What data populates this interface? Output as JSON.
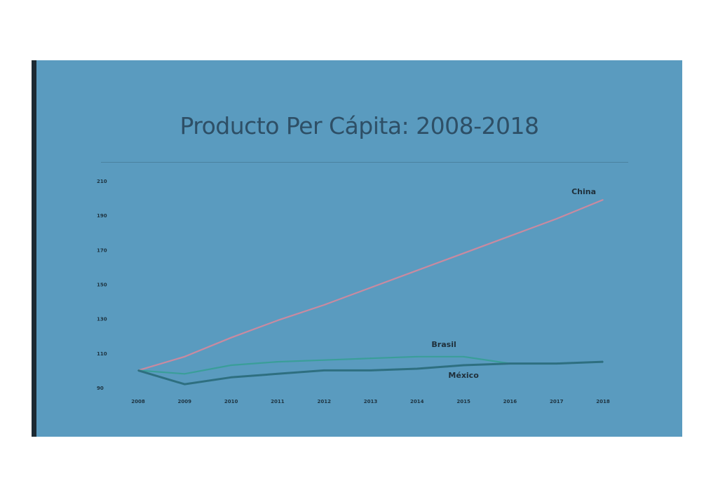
{
  "chart_data": {
    "type": "line",
    "title": "Producto Per Cápita: 2008-2018",
    "x": [
      "2008",
      "2009",
      "2010",
      "2011",
      "2012",
      "2013",
      "2014",
      "2015",
      "2016",
      "2017",
      "2018"
    ],
    "y_ticks": [
      "90",
      "110",
      "130",
      "150",
      "170",
      "190",
      "210"
    ],
    "ylim": [
      90,
      210
    ],
    "series": [
      {
        "name": "China",
        "color": "#c98aa0",
        "values": [
          100,
          108,
          119,
          129,
          138,
          148,
          158,
          168,
          178,
          188,
          199
        ]
      },
      {
        "name": "Brasil",
        "color": "#3a9e99",
        "values": [
          100,
          98,
          103,
          105,
          106,
          107,
          108,
          108,
          104,
          104,
          105
        ]
      },
      {
        "name": "México",
        "color": "#2e6f80",
        "values": [
          100,
          92,
          96,
          98,
          100,
          100,
          101,
          103,
          104,
          104,
          105
        ]
      }
    ],
    "grid": false,
    "legend": "direct labels"
  }
}
